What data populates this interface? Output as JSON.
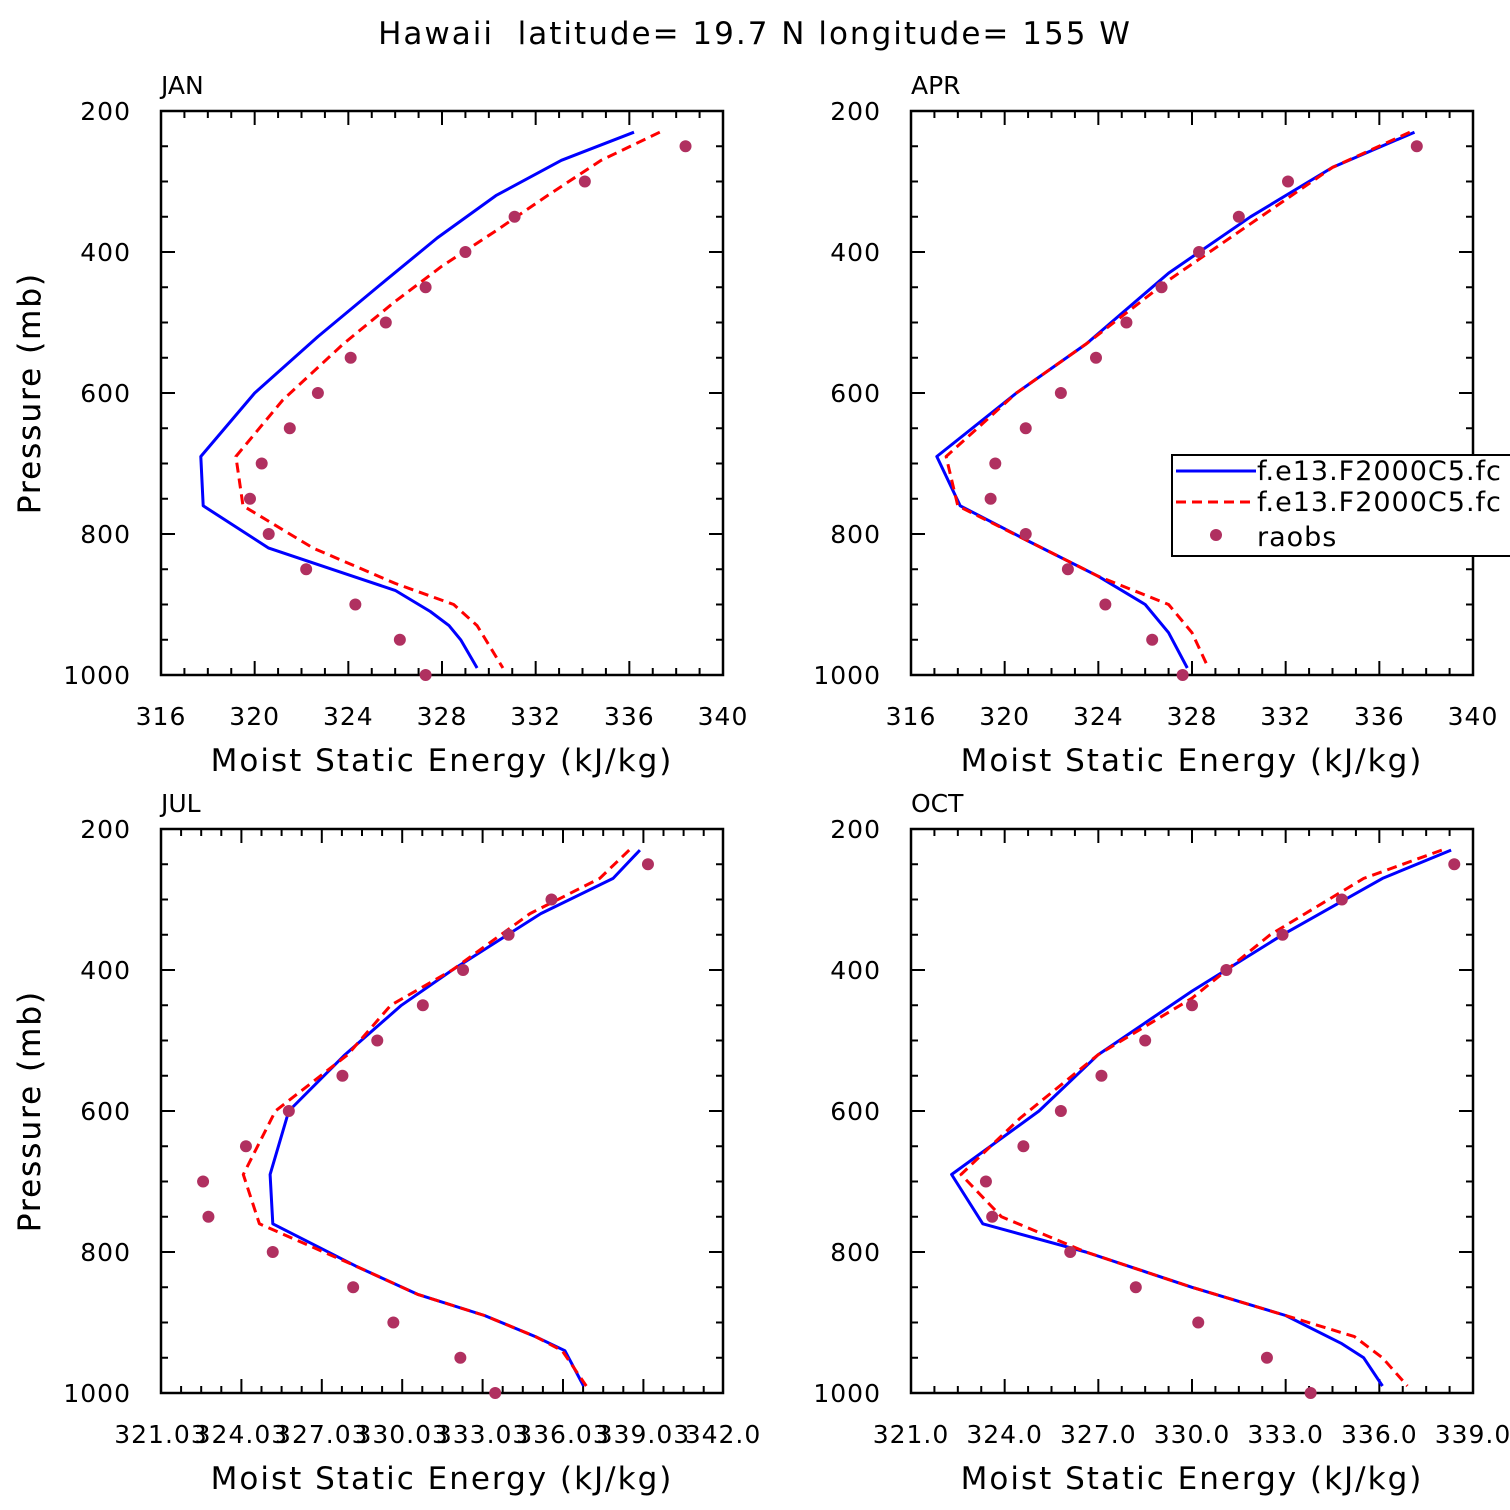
{
  "title": "Hawaii  latitude= 19.7 N longitude= 155 W",
  "legend": {
    "entries": [
      "f.e13.F2000C5.fc",
      "f.e13.F2000C5.fc",
      "raobs"
    ],
    "placement": "right-middle of APR panel (partially clipped)"
  },
  "colors": {
    "model1": "#0000ff",
    "model2": "#ff0000",
    "raobs": "#b03060"
  },
  "chart_data": [
    {
      "type": "line",
      "panel_title": "JAN",
      "xlabel": "Moist Static Energy (kJ/kg)",
      "ylabel": "Pressure (mb)",
      "xlim": [
        316,
        340
      ],
      "ylim": [
        1000,
        200
      ],
      "y_reversed": true,
      "xticks": [
        316,
        320,
        324,
        328,
        332,
        336,
        340
      ],
      "xtick_labels": [
        "316",
        "320",
        "324",
        "328",
        "332",
        "336",
        "340"
      ],
      "yticks": [
        200,
        400,
        600,
        800,
        1000
      ],
      "ytick_labels": [
        "200",
        "400",
        "600",
        "800",
        "1000"
      ],
      "series": [
        {
          "kind": "line",
          "style": "solid",
          "color": "#0000ff",
          "x": [
            336.2,
            333.1,
            330.3,
            327.8,
            325.6,
            322.7,
            320.0,
            317.7,
            317.8,
            320.6,
            324.2,
            326.0,
            327.5,
            328.3,
            328.8,
            329.5
          ],
          "y": [
            230,
            270,
            320,
            380,
            440,
            520,
            600,
            690,
            760,
            820,
            860,
            880,
            910,
            930,
            950,
            990
          ]
        },
        {
          "kind": "line",
          "style": "dashed",
          "color": "#ff0000",
          "x": [
            337.3,
            334.8,
            332.5,
            330.3,
            328.0,
            326.0,
            323.8,
            321.2,
            319.2,
            319.5,
            320.5,
            322.5,
            326.0,
            328.5,
            329.5,
            330.6
          ],
          "y": [
            230,
            270,
            320,
            370,
            420,
            470,
            530,
            610,
            690,
            760,
            780,
            820,
            870,
            900,
            930,
            990
          ]
        },
        {
          "kind": "markers",
          "color": "#b03060",
          "x": [
            338.4,
            334.1,
            331.1,
            329.0,
            327.3,
            325.6,
            324.1,
            322.7,
            321.5,
            320.3,
            319.8,
            320.6,
            322.2,
            324.3,
            326.2,
            327.3
          ],
          "y": [
            250,
            300,
            350,
            400,
            450,
            500,
            550,
            600,
            650,
            700,
            750,
            800,
            850,
            900,
            950,
            1000
          ]
        }
      ]
    },
    {
      "type": "line",
      "panel_title": "APR",
      "xlabel": "Moist Static Energy (kJ/kg)",
      "ylabel": "Pressure (mb)",
      "xlim": [
        316,
        340
      ],
      "ylim": [
        1000,
        200
      ],
      "y_reversed": true,
      "xticks": [
        316,
        320,
        324,
        328,
        332,
        336,
        340
      ],
      "xtick_labels": [
        "316",
        "320",
        "324",
        "328",
        "332",
        "336",
        "340"
      ],
      "yticks": [
        200,
        400,
        600,
        800,
        1000
      ],
      "ytick_labels": [
        "200",
        "400",
        "600",
        "800",
        "1000"
      ],
      "series": [
        {
          "kind": "line",
          "style": "solid",
          "color": "#0000ff",
          "x": [
            337.5,
            334.0,
            330.5,
            327.0,
            323.5,
            320.5,
            317.1,
            318.1,
            321.0,
            324.0,
            326.0,
            327.0,
            327.8
          ],
          "y": [
            230,
            280,
            350,
            430,
            530,
            600,
            690,
            760,
            810,
            860,
            900,
            940,
            990
          ]
        },
        {
          "kind": "line",
          "style": "dashed",
          "color": "#ff0000",
          "x": [
            337.3,
            334.0,
            330.5,
            327.0,
            323.5,
            320.5,
            317.5,
            318.0,
            321.0,
            324.0,
            327.0,
            328.0,
            328.7
          ],
          "y": [
            230,
            280,
            360,
            440,
            530,
            600,
            690,
            760,
            810,
            860,
            900,
            940,
            990
          ]
        },
        {
          "kind": "markers",
          "color": "#b03060",
          "x": [
            337.6,
            332.1,
            330.0,
            328.3,
            326.7,
            325.2,
            323.9,
            322.4,
            320.9,
            319.6,
            319.4,
            320.9,
            322.7,
            324.3,
            326.3,
            327.6
          ],
          "y": [
            250,
            300,
            350,
            400,
            450,
            500,
            550,
            600,
            650,
            700,
            750,
            800,
            850,
            900,
            950,
            1000
          ]
        }
      ]
    },
    {
      "type": "line",
      "panel_title": "JUL",
      "xlabel": "Moist Static Energy (kJ/kg)",
      "ylabel": "Pressure (mb)",
      "xlim": [
        321.03,
        342.0
      ],
      "ylim": [
        1000,
        200
      ],
      "y_reversed": true,
      "xticks": [
        321.03,
        324.03,
        327.03,
        330.03,
        333.03,
        336.03,
        339.03,
        342.0
      ],
      "xtick_labels": [
        "321.03",
        "324.03",
        "327.03",
        "330.03",
        "333.03",
        "336.03",
        "339.03",
        "342.0"
      ],
      "yticks": [
        200,
        400,
        600,
        800,
        1000
      ],
      "ytick_labels": [
        "200",
        "400",
        "600",
        "800",
        "1000"
      ],
      "series": [
        {
          "kind": "line",
          "style": "solid",
          "color": "#0000ff",
          "x": [
            338.9,
            337.9,
            335.2,
            331.9,
            330.0,
            327.9,
            325.8,
            325.1,
            325.2,
            328.3,
            330.6,
            333.1,
            335.0,
            336.1,
            336.8
          ],
          "y": [
            230,
            270,
            320,
            400,
            450,
            520,
            600,
            690,
            760,
            820,
            860,
            890,
            920,
            940,
            990
          ]
        },
        {
          "kind": "line",
          "style": "dashed",
          "color": "#ff0000",
          "x": [
            338.5,
            337.4,
            334.8,
            331.9,
            329.6,
            328.0,
            325.3,
            324.1,
            324.7,
            328.3,
            330.6,
            333.1,
            335.0,
            336.0,
            336.9
          ],
          "y": [
            230,
            270,
            320,
            400,
            450,
            520,
            600,
            690,
            760,
            820,
            860,
            890,
            920,
            940,
            990
          ]
        },
        {
          "kind": "markers",
          "color": "#b03060",
          "x": [
            339.2,
            335.6,
            334.0,
            332.3,
            330.8,
            329.1,
            327.8,
            325.8,
            324.2,
            322.6,
            322.8,
            325.2,
            328.2,
            329.7,
            332.2,
            333.5
          ],
          "y": [
            250,
            300,
            350,
            400,
            450,
            500,
            550,
            600,
            650,
            700,
            750,
            800,
            850,
            900,
            950,
            1000
          ]
        }
      ]
    },
    {
      "type": "line",
      "panel_title": "OCT",
      "xlabel": "Moist Static Energy (kJ/kg)",
      "ylabel": "Pressure (mb)",
      "xlim": [
        321.0,
        339.0
      ],
      "ylim": [
        1000,
        200
      ],
      "y_reversed": true,
      "xticks": [
        321.0,
        324.0,
        327.0,
        330.0,
        333.0,
        336.0,
        339.0
      ],
      "xtick_labels": [
        "321.0",
        "324.0",
        "327.0",
        "330.0",
        "333.0",
        "336.0",
        "339.0"
      ],
      "yticks": [
        200,
        400,
        600,
        800,
        1000
      ],
      "ytick_labels": [
        "200",
        "400",
        "600",
        "800",
        "1000"
      ],
      "series": [
        {
          "kind": "line",
          "style": "solid",
          "color": "#0000ff",
          "x": [
            338.3,
            336.1,
            332.9,
            330.0,
            327.0,
            325.1,
            322.3,
            323.3,
            326.6,
            330.0,
            333.0,
            334.8,
            335.5,
            336.1
          ],
          "y": [
            230,
            270,
            350,
            430,
            520,
            600,
            690,
            760,
            800,
            850,
            890,
            930,
            950,
            990
          ]
        },
        {
          "kind": "line",
          "style": "dashed",
          "color": "#ff0000",
          "x": [
            338.0,
            335.5,
            332.5,
            330.0,
            327.0,
            324.5,
            322.6,
            323.9,
            326.6,
            330.0,
            333.0,
            335.2,
            336.1,
            336.9
          ],
          "y": [
            230,
            270,
            350,
            440,
            520,
            610,
            690,
            750,
            800,
            850,
            890,
            920,
            950,
            990
          ]
        },
        {
          "kind": "markers",
          "color": "#b03060",
          "x": [
            338.4,
            334.8,
            332.9,
            331.1,
            330.0,
            328.5,
            327.1,
            325.8,
            324.6,
            323.4,
            323.6,
            326.1,
            328.2,
            330.2,
            332.4,
            333.8
          ],
          "y": [
            250,
            300,
            350,
            400,
            450,
            500,
            550,
            600,
            650,
            700,
            750,
            800,
            850,
            900,
            950,
            1000
          ]
        }
      ]
    }
  ]
}
